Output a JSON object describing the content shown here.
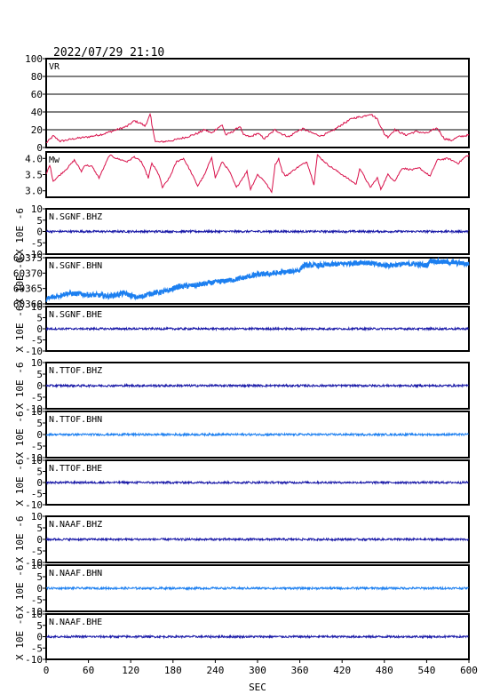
{
  "title": "2022/07/29 21:10",
  "xlabel": "SEC",
  "colors": {
    "vr": "#d8104a",
    "mw": "#d8104a",
    "dark": "#1a1aa8",
    "light": "#1c7ff0",
    "frame": "#000000",
    "grid": "#000000"
  },
  "chart_data": [
    {
      "type": "line",
      "label": "VR",
      "ylim": [
        0,
        100
      ],
      "yticks": [
        "0",
        "20",
        "40",
        "60",
        "80",
        "100"
      ],
      "grid": true,
      "x": [
        0,
        10,
        20,
        40,
        60,
        80,
        100,
        115,
        125,
        135,
        140,
        145,
        148,
        150,
        155,
        160,
        180,
        200,
        215,
        225,
        235,
        240,
        245,
        250,
        255,
        265,
        275,
        280,
        290,
        300,
        310,
        325,
        335,
        345,
        355,
        365,
        375,
        390,
        405,
        420,
        435,
        450,
        460,
        470,
        480,
        485,
        495,
        510,
        525,
        540,
        555,
        565,
        575,
        585,
        600
      ],
      "values": [
        5,
        13,
        7,
        10,
        12,
        15,
        20,
        24,
        30,
        27,
        24,
        32,
        38,
        25,
        7,
        6,
        8,
        12,
        16,
        20,
        16,
        20,
        23,
        25,
        14,
        18,
        24,
        14,
        12,
        16,
        10,
        20,
        15,
        12,
        18,
        21,
        17,
        13,
        18,
        26,
        33,
        35,
        38,
        32,
        15,
        12,
        20,
        14,
        18,
        16,
        22,
        10,
        8,
        12,
        14
      ]
    },
    {
      "type": "line",
      "label": "Mw",
      "ylim": [
        2.8,
        4.2
      ],
      "yticks": [
        "3.0",
        "3.5",
        "4.0"
      ],
      "grid": false,
      "x": [
        0,
        5,
        10,
        20,
        30,
        40,
        50,
        55,
        65,
        75,
        90,
        100,
        115,
        125,
        135,
        145,
        150,
        160,
        165,
        175,
        185,
        195,
        205,
        215,
        225,
        235,
        240,
        250,
        260,
        270,
        285,
        290,
        300,
        310,
        320,
        325,
        330,
        335,
        340,
        355,
        370,
        380,
        385,
        390,
        400,
        420,
        440,
        445,
        460,
        470,
        475,
        485,
        495,
        505,
        520,
        530,
        545,
        555,
        570,
        585,
        595,
        600
      ],
      "values": [
        3.5,
        3.8,
        3.3,
        3.5,
        3.7,
        3.95,
        3.6,
        3.8,
        3.75,
        3.4,
        4.1,
        4.0,
        3.9,
        4.05,
        3.9,
        3.4,
        3.85,
        3.5,
        3.1,
        3.4,
        3.9,
        4.0,
        3.6,
        3.15,
        3.5,
        4.05,
        3.4,
        3.9,
        3.6,
        3.1,
        3.6,
        3.05,
        3.5,
        3.3,
        2.95,
        3.8,
        4.0,
        3.6,
        3.45,
        3.7,
        3.9,
        3.2,
        4.1,
        4.0,
        3.8,
        3.5,
        3.2,
        3.7,
        3.1,
        3.4,
        3.05,
        3.5,
        3.3,
        3.7,
        3.65,
        3.7,
        3.45,
        3.95,
        4.0,
        3.85,
        4.05,
        4.1
      ]
    },
    {
      "type": "line",
      "label": "N.SGNF.BHZ",
      "ylabel": "X 10E -6",
      "ylim": [
        -10,
        10
      ],
      "yticks": [
        "-10",
        "-5",
        "0",
        "5",
        "10"
      ],
      "color": "dark",
      "x": [
        0,
        600
      ],
      "values": [
        0,
        0
      ]
    },
    {
      "type": "line",
      "label": "N.SGNF.BHN",
      "ylabel": "X 10E -6",
      "ylim": [
        60360,
        60375
      ],
      "yticks": [
        "60360",
        "60365",
        "60370",
        "60375"
      ],
      "color": "light",
      "x": [
        0,
        30,
        60,
        90,
        110,
        130,
        150,
        170,
        185,
        210,
        240,
        270,
        300,
        330,
        360,
        365,
        390,
        420,
        450,
        480,
        520,
        540,
        545,
        570,
        600
      ],
      "values": [
        60361.5,
        60363.5,
        60363.0,
        60362.5,
        60363.5,
        60362.0,
        60363.5,
        60364.0,
        60365.5,
        60366.0,
        60367.0,
        60368.0,
        60369.5,
        60370.0,
        60371.0,
        60372.5,
        60372.5,
        60373.0,
        60373.5,
        60372.5,
        60373.0,
        60372.5,
        60374.0,
        60373.5,
        60373.0
      ]
    },
    {
      "type": "line",
      "label": "N.SGNF.BHE",
      "ylabel": "X 10E -6",
      "ylim": [
        -10,
        10
      ],
      "yticks": [
        "-10",
        "-5",
        "0",
        "5",
        "10"
      ],
      "color": "dark",
      "x": [
        0,
        600
      ],
      "values": [
        0,
        0
      ]
    },
    {
      "type": "line",
      "label": "N.TTOF.BHZ",
      "ylabel": "X 10E -6",
      "ylim": [
        -10,
        10
      ],
      "yticks": [
        "-10",
        "-5",
        "0",
        "5",
        "10"
      ],
      "color": "dark",
      "x": [
        0,
        600
      ],
      "values": [
        0,
        0
      ]
    },
    {
      "type": "line",
      "label": "N.TTOF.BHN",
      "ylabel": "X 10E -6",
      "ylim": [
        -10,
        10
      ],
      "yticks": [
        "-10",
        "-5",
        "0",
        "5",
        "10"
      ],
      "color": "light",
      "x": [
        0,
        600
      ],
      "values": [
        0,
        0
      ]
    },
    {
      "type": "line",
      "label": "N.TTOF.BHE",
      "ylabel": "X 10E -6",
      "ylim": [
        -10,
        10
      ],
      "yticks": [
        "-10",
        "-5",
        "0",
        "5",
        "10"
      ],
      "color": "dark",
      "x": [
        0,
        600
      ],
      "values": [
        0,
        0
      ]
    },
    {
      "type": "line",
      "label": "N.NAAF.BHZ",
      "ylabel": "X 10E -6",
      "ylim": [
        -10,
        10
      ],
      "yticks": [
        "-10",
        "-5",
        "0",
        "5",
        "10"
      ],
      "color": "dark",
      "x": [
        0,
        600
      ],
      "values": [
        0,
        0
      ]
    },
    {
      "type": "line",
      "label": "N.NAAF.BHN",
      "ylabel": "X 10E -6",
      "ylim": [
        -10,
        10
      ],
      "yticks": [
        "-10",
        "-5",
        "0",
        "5",
        "10"
      ],
      "color": "light",
      "x": [
        0,
        600
      ],
      "values": [
        0,
        0
      ]
    },
    {
      "type": "line",
      "label": "N.NAAF.BHE",
      "ylabel": "X 10E -6",
      "ylim": [
        -10,
        10
      ],
      "yticks": [
        "-10",
        "-5",
        "0",
        "5",
        "10"
      ],
      "color": "dark",
      "x": [
        0,
        600
      ],
      "values": [
        0,
        0
      ]
    }
  ],
  "xaxis": {
    "ticks": [
      "0",
      "60",
      "120",
      "180",
      "240",
      "300",
      "360",
      "420",
      "480",
      "540",
      "600"
    ],
    "xlim": [
      0,
      600
    ]
  }
}
